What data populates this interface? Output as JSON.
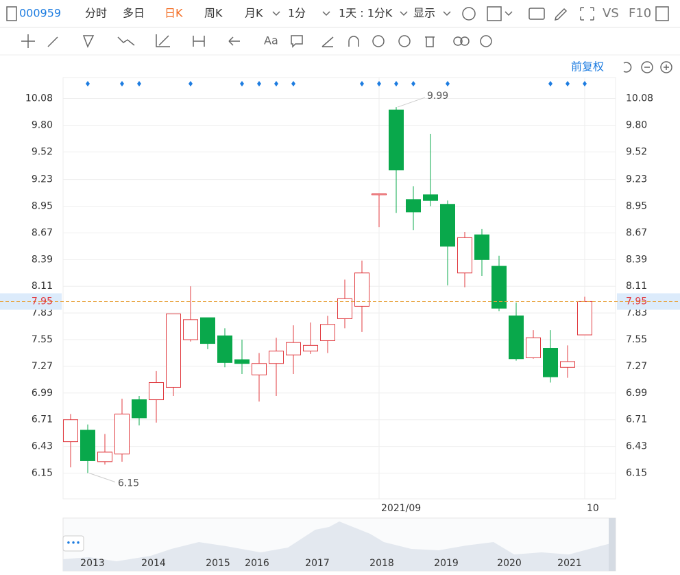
{
  "ui": {
    "code": "000959",
    "tabs": [
      "分时",
      "多日",
      "日K",
      "周K",
      "月K",
      "1分",
      "1天 : 1分K",
      "显示"
    ],
    "vs": "VS",
    "f10": "F10",
    "adjust": "前复权"
  },
  "chart_data": {
    "type": "candlestick",
    "categories": [
      null,
      null,
      null,
      null,
      null,
      null,
      null,
      null,
      null,
      null,
      null,
      null,
      null,
      null,
      null,
      null,
      null,
      null,
      "2021/09",
      null,
      null,
      null,
      null,
      null,
      null,
      null,
      null,
      null,
      null,
      null,
      "10"
    ],
    "open": [
      6.48,
      6.6,
      6.27,
      6.35,
      6.92,
      6.92,
      7.05,
      7.55,
      7.78,
      7.59,
      7.34,
      7.18,
      7.3,
      7.39,
      7.43,
      7.54,
      7.77,
      7.9,
      9.07,
      9.96,
      9.02,
      9.07,
      8.97,
      8.25,
      8.65,
      8.32,
      7.8,
      7.36,
      7.46,
      7.26,
      7.6
    ],
    "high": [
      6.77,
      6.66,
      6.56,
      6.93,
      6.96,
      7.22,
      7.82,
      8.11,
      7.78,
      7.67,
      7.55,
      7.41,
      7.57,
      7.7,
      7.73,
      7.8,
      8.18,
      8.38,
      9.08,
      9.99,
      9.16,
      9.71,
      9.01,
      8.68,
      8.71,
      8.43,
      7.94,
      7.65,
      7.65,
      7.49,
      8.0
    ],
    "low": [
      6.21,
      6.15,
      6.24,
      6.27,
      6.65,
      6.68,
      6.96,
      7.53,
      7.45,
      7.26,
      7.19,
      6.9,
      6.96,
      7.19,
      7.4,
      7.41,
      7.67,
      7.63,
      8.73,
      8.88,
      8.7,
      8.95,
      8.12,
      8.1,
      8.22,
      7.85,
      7.33,
      7.35,
      7.1,
      7.15,
      7.6
    ],
    "close": [
      6.71,
      6.28,
      6.37,
      6.77,
      6.73,
      7.1,
      7.82,
      7.76,
      7.51,
      7.31,
      7.3,
      7.3,
      7.43,
      7.52,
      7.49,
      7.71,
      7.98,
      8.25,
      9.08,
      9.33,
      8.89,
      9.01,
      8.53,
      8.62,
      8.39,
      7.88,
      7.35,
      7.57,
      7.16,
      7.32,
      7.95
    ],
    "up_color": "#e0393e",
    "down_color": "#09a84b",
    "ylim": [
      5.88,
      10.3
    ],
    "yticks": [
      10.08,
      {
        "value": 9.8,
        "label": "9.80"
      },
      9.52,
      9.23,
      8.95,
      8.67,
      8.39,
      8.11,
      7.83,
      7.55,
      7.27,
      6.99,
      6.71,
      6.43,
      6.15
    ],
    "max_label": 9.99,
    "min_label": 6.15,
    "last_price": 7.95,
    "grid": true
  },
  "navigator": {
    "years": [
      "2013",
      "2014",
      "2015",
      "2016",
      "2017",
      "2018",
      "2019",
      "2020",
      "2021"
    ]
  }
}
